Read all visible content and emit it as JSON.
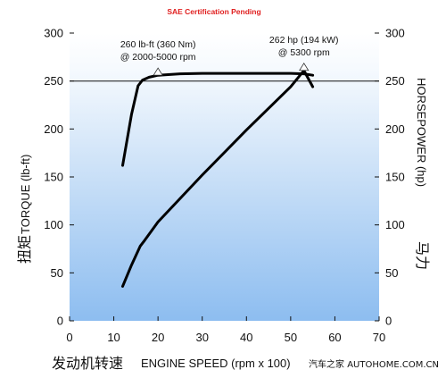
{
  "chart_data": {
    "type": "line",
    "title": "SAE Certification Pending",
    "xlabel_cn": "发动机转速",
    "xlabel": "ENGINE SPEED (rpm x 100)",
    "ylabel_left_cn": "扭矩",
    "ylabel_left": "TORQUE (lb-ft)",
    "ylabel_right_cn": "马力",
    "ylabel_right": "HORSEPOWER (hp)",
    "xlim": [
      0,
      70
    ],
    "ylim": [
      0,
      300
    ],
    "x_ticks": [
      "0",
      "10",
      "20",
      "30",
      "40",
      "50",
      "60",
      "70"
    ],
    "y_ticks": [
      "0",
      "50",
      "100",
      "150",
      "200",
      "250",
      "300"
    ],
    "grid": false,
    "series": [
      {
        "axis": "left",
        "x": [
          12,
          14,
          15.5,
          16.5,
          18,
          20,
          25,
          30,
          40,
          50,
          53,
          55
        ],
        "y": [
          162,
          215,
          245,
          251,
          254,
          256,
          257.5,
          258,
          258,
          258,
          257.5,
          256
        ]
      },
      {
        "axis": "right",
        "x": [
          12,
          14,
          16,
          17,
          20,
          30,
          40,
          50,
          53,
          55
        ],
        "y": [
          36,
          58,
          78,
          84,
          103,
          152,
          199,
          244,
          261,
          244
        ]
      }
    ],
    "annotations": [
      {
        "line1": "260 lb-ft (360 Nm)",
        "line2": "@ 2000-5000 rpm",
        "x": 20,
        "y": 257
      },
      {
        "line1": "262 hp (194 kW)",
        "line2": "@ 5300 rpm",
        "x": 53,
        "y": 262
      }
    ]
  },
  "watermark": "汽车之家 AUTOHOME.COM.CN"
}
